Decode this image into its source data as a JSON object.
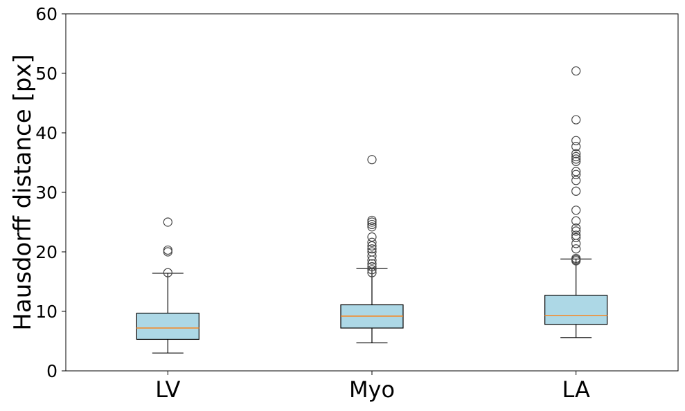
{
  "chart_data": {
    "type": "box",
    "title": "",
    "xlabel": "",
    "ylabel": "Hausdorff distance [px]",
    "ylim": [
      0,
      60
    ],
    "yticks": [
      0,
      10,
      20,
      30,
      40,
      50,
      60
    ],
    "categories": [
      "LV",
      "Myo",
      "LA"
    ],
    "grid": false,
    "colors": {
      "box_fill": "#add8e6",
      "median": "#ff7f0e",
      "line": "#000000",
      "outlier_edge": "#444444"
    },
    "boxes": [
      {
        "category": "LV",
        "whisker_low": 3.0,
        "q1": 5.3,
        "median": 7.2,
        "q3": 9.7,
        "whisker_high": 16.4,
        "outliers": [
          16.5,
          20.0,
          20.3,
          25.0
        ]
      },
      {
        "category": "Myo",
        "whisker_low": 4.7,
        "q1": 7.2,
        "median": 9.2,
        "q3": 11.1,
        "whisker_high": 17.2,
        "outliers": [
          16.5,
          17.0,
          17.5,
          18.0,
          18.6,
          19.3,
          20.0,
          20.5,
          21.0,
          21.6,
          22.5,
          24.2,
          24.6,
          25.0,
          25.3,
          35.5
        ]
      },
      {
        "category": "LA",
        "whisker_low": 5.6,
        "q1": 7.8,
        "median": 9.3,
        "q3": 12.7,
        "whisker_high": 18.8,
        "outliers": [
          18.5,
          18.7,
          18.9,
          20.5,
          21.4,
          22.4,
          22.8,
          23.5,
          24.0,
          25.2,
          27.0,
          30.2,
          32.0,
          33.0,
          33.5,
          35.2,
          35.6,
          36.0,
          36.5,
          37.7,
          38.7,
          42.2,
          50.4
        ]
      }
    ]
  }
}
